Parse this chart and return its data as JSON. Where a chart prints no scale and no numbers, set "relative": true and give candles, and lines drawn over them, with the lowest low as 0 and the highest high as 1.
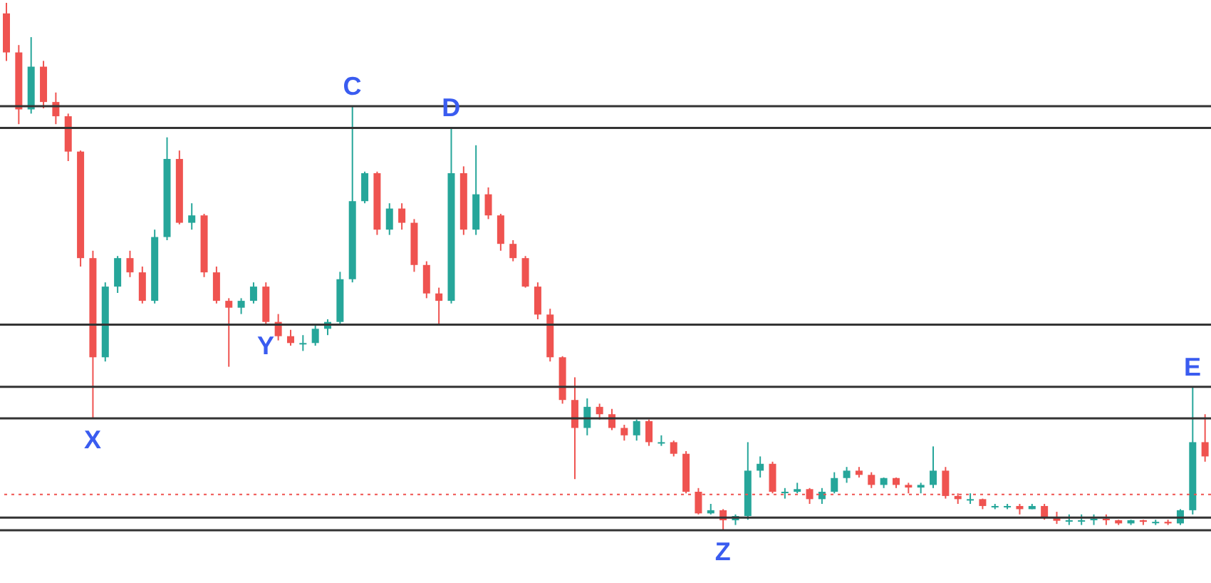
{
  "chart_data": {
    "type": "candlestick",
    "relative": true,
    "categories": [
      null,
      null,
      null,
      null,
      null,
      null,
      null,
      null,
      null,
      null,
      null,
      null,
      null,
      null,
      null,
      null,
      null,
      null,
      null,
      null,
      null,
      null,
      null,
      null,
      null,
      null,
      null,
      null,
      null,
      null,
      null,
      null,
      null,
      null,
      null,
      null,
      null,
      null,
      null,
      null,
      null,
      null,
      null,
      null,
      null,
      null,
      null,
      null,
      null,
      null,
      null,
      null,
      null,
      null,
      null,
      null,
      null,
      null,
      null,
      null,
      null,
      null,
      null,
      null,
      null,
      null,
      null,
      null,
      null,
      null,
      null,
      null,
      null,
      null,
      null,
      null,
      null,
      null,
      null,
      null,
      null,
      null,
      null,
      null,
      null,
      null,
      null,
      null,
      null,
      null,
      null,
      null,
      null,
      null,
      null,
      null,
      null,
      null
    ],
    "colors": [
      "#ef5350",
      "#ef5350",
      "#26a69a",
      "#ef5350",
      "#ef5350",
      "#ef5350",
      "#ef5350",
      "#ef5350",
      "#26a69a",
      "#26a69a",
      "#ef5350",
      "#ef5350",
      "#26a69a",
      "#26a69a",
      "#ef5350",
      "#26a69a",
      "#ef5350",
      "#ef5350",
      "#ef5350",
      "#26a69a",
      "#26a69a",
      "#ef5350",
      "#ef5350",
      "#ef5350",
      "#26a69a",
      "#26a69a",
      "#26a69a",
      "#26a69a",
      "#26a69a",
      "#26a69a",
      "#ef5350",
      "#26a69a",
      "#ef5350",
      "#ef5350",
      "#ef5350",
      "#ef5350",
      "#26a69a",
      "#ef5350",
      "#26a69a",
      "#ef5350",
      "#ef5350",
      "#ef5350",
      "#ef5350",
      "#ef5350",
      "#ef5350",
      "#ef5350",
      "#ef5350",
      "#26a69a",
      "#ef5350",
      "#ef5350",
      "#ef5350",
      "#26a69a",
      "#ef5350",
      "#26a69a",
      "#ef5350",
      "#ef5350",
      "#ef5350",
      "#26a69a",
      "#ef5350",
      "#26a69a",
      "#26a69a",
      "#26a69a",
      "#ef5350",
      "#26a69a",
      "#26a69a",
      "#ef5350",
      "#26a69a",
      "#26a69a",
      "#26a69a",
      "#ef5350",
      "#ef5350",
      "#26a69a",
      "#ef5350",
      "#ef5350",
      "#26a69a",
      "#26a69a",
      "#ef5350",
      "#ef5350",
      "#26a69a",
      "#ef5350",
      "#26a69a",
      "#26a69a",
      "#ef5350",
      "#26a69a",
      "#ef5350",
      "#ef5350",
      "#26a69a",
      "#26a69a",
      "#26a69a",
      "#ef5350",
      "#ef5350",
      "#26a69a",
      "#ef5350",
      "#26a69a",
      "#ef5350",
      "#26a69a",
      "#26a69a",
      "#ef5350"
    ],
    "ohlc": [
      [
        0.98,
        1.0,
        0.89,
        0.906
      ],
      [
        0.906,
        0.92,
        0.77,
        0.798
      ],
      [
        0.798,
        0.935,
        0.79,
        0.879
      ],
      [
        0.879,
        0.89,
        0.8,
        0.812
      ],
      [
        0.812,
        0.83,
        0.77,
        0.785
      ],
      [
        0.785,
        0.79,
        0.7,
        0.718
      ],
      [
        0.718,
        0.72,
        0.5,
        0.516
      ],
      [
        0.516,
        0.53,
        0.212,
        0.328
      ],
      [
        0.328,
        0.47,
        0.32,
        0.462
      ],
      [
        0.462,
        0.52,
        0.45,
        0.516
      ],
      [
        0.516,
        0.53,
        0.48,
        0.489
      ],
      [
        0.489,
        0.5,
        0.43,
        0.435
      ],
      [
        0.435,
        0.57,
        0.43,
        0.556
      ],
      [
        0.556,
        0.745,
        0.55,
        0.704
      ],
      [
        0.704,
        0.72,
        0.58,
        0.583
      ],
      [
        0.583,
        0.62,
        0.57,
        0.597
      ],
      [
        0.597,
        0.6,
        0.48,
        0.489
      ],
      [
        0.489,
        0.5,
        0.43,
        0.435
      ],
      [
        0.435,
        0.44,
        0.31,
        0.422
      ],
      [
        0.422,
        0.44,
        0.41,
        0.435
      ],
      [
        0.435,
        0.47,
        0.43,
        0.462
      ],
      [
        0.462,
        0.47,
        0.39,
        0.395
      ],
      [
        0.395,
        0.41,
        0.36,
        0.368
      ],
      [
        0.368,
        0.38,
        0.35,
        0.355
      ],
      [
        0.355,
        0.37,
        0.34,
        0.355
      ],
      [
        0.355,
        0.39,
        0.35,
        0.382
      ],
      [
        0.382,
        0.4,
        0.37,
        0.395
      ],
      [
        0.395,
        0.49,
        0.39,
        0.476
      ],
      [
        0.476,
        0.804,
        0.47,
        0.624
      ],
      [
        0.624,
        0.68,
        0.62,
        0.677
      ],
      [
        0.677,
        0.68,
        0.56,
        0.57
      ],
      [
        0.57,
        0.62,
        0.56,
        0.61
      ],
      [
        0.61,
        0.62,
        0.57,
        0.583
      ],
      [
        0.583,
        0.59,
        0.49,
        0.503
      ],
      [
        0.503,
        0.51,
        0.44,
        0.449
      ],
      [
        0.449,
        0.46,
        0.39,
        0.435
      ],
      [
        0.435,
        0.763,
        0.43,
        0.677
      ],
      [
        0.677,
        0.69,
        0.56,
        0.57
      ],
      [
        0.57,
        0.73,
        0.56,
        0.637
      ],
      [
        0.637,
        0.65,
        0.59,
        0.597
      ],
      [
        0.597,
        0.6,
        0.53,
        0.543
      ],
      [
        0.543,
        0.55,
        0.51,
        0.516
      ],
      [
        0.516,
        0.52,
        0.46,
        0.462
      ],
      [
        0.462,
        0.47,
        0.4,
        0.409
      ],
      [
        0.409,
        0.42,
        0.32,
        0.328
      ],
      [
        0.328,
        0.33,
        0.24,
        0.247
      ],
      [
        0.247,
        0.29,
        0.097,
        0.194
      ],
      [
        0.194,
        0.25,
        0.18,
        0.234
      ],
      [
        0.234,
        0.24,
        0.21,
        0.22
      ],
      [
        0.22,
        0.23,
        0.19,
        0.194
      ],
      [
        0.194,
        0.2,
        0.17,
        0.18
      ],
      [
        0.18,
        0.21,
        0.17,
        0.207
      ],
      [
        0.207,
        0.21,
        0.16,
        0.167
      ],
      [
        0.167,
        0.18,
        0.16,
        0.167
      ],
      [
        0.167,
        0.17,
        0.14,
        0.145
      ],
      [
        0.145,
        0.15,
        0.07,
        0.073
      ],
      [
        0.073,
        0.08,
        0.03,
        0.032
      ],
      [
        0.032,
        0.05,
        0.03,
        0.038
      ],
      [
        0.038,
        0.04,
        0.0,
        0.019
      ],
      [
        0.019,
        0.03,
        0.01,
        0.027
      ],
      [
        0.027,
        0.167,
        0.02,
        0.113
      ],
      [
        0.113,
        0.14,
        0.1,
        0.126
      ],
      [
        0.126,
        0.13,
        0.07,
        0.073
      ],
      [
        0.073,
        0.08,
        0.06,
        0.073
      ],
      [
        0.073,
        0.09,
        0.07,
        0.078
      ],
      [
        0.078,
        0.08,
        0.05,
        0.059
      ],
      [
        0.059,
        0.08,
        0.05,
        0.073
      ],
      [
        0.073,
        0.11,
        0.07,
        0.099
      ],
      [
        0.099,
        0.12,
        0.09,
        0.113
      ],
      [
        0.113,
        0.12,
        0.1,
        0.105
      ],
      [
        0.105,
        0.11,
        0.08,
        0.086
      ],
      [
        0.086,
        0.1,
        0.08,
        0.099
      ],
      [
        0.099,
        0.1,
        0.08,
        0.086
      ],
      [
        0.086,
        0.09,
        0.07,
        0.081
      ],
      [
        0.081,
        0.09,
        0.07,
        0.086
      ],
      [
        0.086,
        0.159,
        0.08,
        0.113
      ],
      [
        0.113,
        0.12,
        0.06,
        0.065
      ],
      [
        0.065,
        0.07,
        0.05,
        0.059
      ],
      [
        0.059,
        0.07,
        0.05,
        0.059
      ],
      [
        0.059,
        0.06,
        0.04,
        0.046
      ],
      [
        0.046,
        0.05,
        0.04,
        0.046
      ],
      [
        0.046,
        0.05,
        0.04,
        0.046
      ],
      [
        0.046,
        0.05,
        0.03,
        0.04
      ],
      [
        0.04,
        0.05,
        0.04,
        0.046
      ],
      [
        0.046,
        0.05,
        0.02,
        0.024
      ],
      [
        0.024,
        0.035,
        0.012,
        0.018
      ],
      [
        0.018,
        0.03,
        0.01,
        0.019
      ],
      [
        0.019,
        0.03,
        0.01,
        0.019
      ],
      [
        0.019,
        0.03,
        0.01,
        0.022
      ],
      [
        0.022,
        0.03,
        0.01,
        0.019
      ],
      [
        0.019,
        0.02,
        0.01,
        0.013
      ],
      [
        0.013,
        0.02,
        0.01,
        0.019
      ],
      [
        0.019,
        0.02,
        0.01,
        0.016
      ],
      [
        0.016,
        0.02,
        0.01,
        0.016
      ],
      [
        0.016,
        0.02,
        0.01,
        0.013
      ],
      [
        0.013,
        0.04,
        0.01,
        0.038
      ],
      [
        0.038,
        0.272,
        0.03,
        0.167
      ],
      [
        0.167,
        0.22,
        0.13,
        0.14
      ]
    ],
    "ref_lines": [
      {
        "axis": "y",
        "value": 0.804,
        "color": "#333333"
      },
      {
        "axis": "y",
        "value": 0.763,
        "color": "#333333"
      },
      {
        "axis": "y",
        "value": 0.39,
        "color": "#333333"
      },
      {
        "axis": "y",
        "value": 0.272,
        "color": "#333333"
      },
      {
        "axis": "y",
        "value": 0.212,
        "color": "#333333"
      },
      {
        "axis": "y",
        "value": 0.024,
        "color": "#333333"
      },
      {
        "axis": "y",
        "value": 0.0,
        "color": "#333333"
      },
      {
        "axis": "y",
        "value": 0.068,
        "color": "#ef5350",
        "line_style": "dotted"
      }
    ],
    "annotations": [
      {
        "text": "X",
        "y": 0.212
      },
      {
        "text": "C",
        "y": 0.804
      },
      {
        "text": "D",
        "y": 0.763
      },
      {
        "text": "Y",
        "y": 0.39
      },
      {
        "text": "Z",
        "y": 0.0
      },
      {
        "text": "E",
        "y": 0.272
      }
    ]
  }
}
